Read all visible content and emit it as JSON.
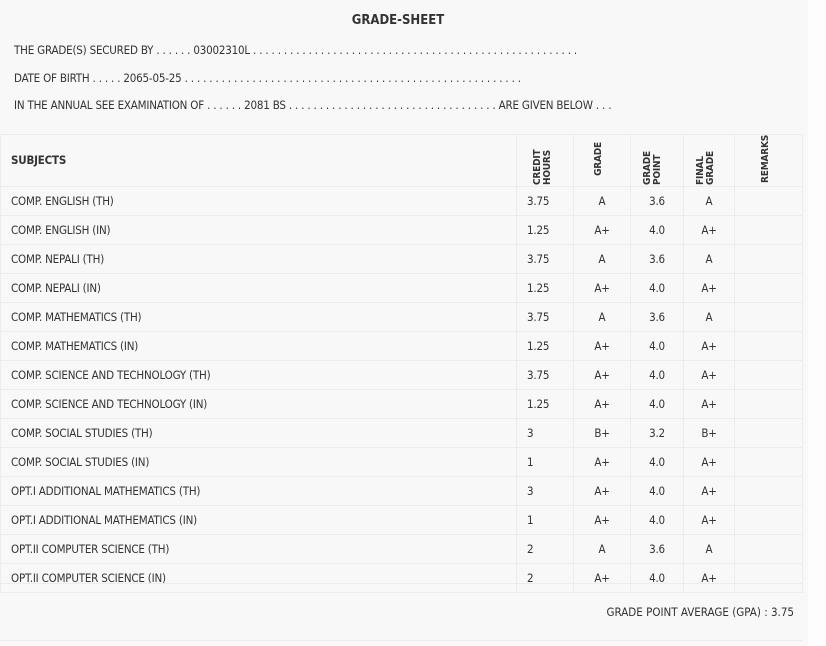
{
  "title": "GRADE-SHEET",
  "info": {
    "secured_by": "THE GRADE(S) SECURED BY . . . . . . 03002310L . . . . . . . . . . . . . . . . . . . . . . . . . . . . . . . . . . . . . . . . . . . . . . . . . . . . .",
    "dob": "DATE OF BIRTH . . . . . 2065-05-25 . . . . . . . . . . . . . . . . . . . . . . . . . . . . . . . . . . . . . . . . . . . . . . . . . . . . . . .",
    "exam": "IN THE ANNUAL SEE EXAMINATION OF . . . . . . 2081 BS . . . . . . . . . . . . . . . . . . . . . . . . . . . . . . . . . . ARE GIVEN BELOW . . ."
  },
  "headers": {
    "subjects": "SUBJECTS",
    "credit": "CREDIT HOURS",
    "grade": "GRADE",
    "point": "GRADE POINT",
    "final": "FINAL GRADE",
    "remarks": "REMARKS"
  },
  "rows": [
    {
      "subject": "COMP. ENGLISH (TH)",
      "credit": "3.75",
      "grade": "A",
      "point": "3.6",
      "final": "A"
    },
    {
      "subject": "COMP. ENGLISH (IN)",
      "credit": "1.25",
      "grade": "A+",
      "point": "4.0",
      "final": "A+"
    },
    {
      "subject": "COMP. NEPALI (TH)",
      "credit": "3.75",
      "grade": "A",
      "point": "3.6",
      "final": "A"
    },
    {
      "subject": "COMP. NEPALI (IN)",
      "credit": "1.25",
      "grade": "A+",
      "point": "4.0",
      "final": "A+"
    },
    {
      "subject": "COMP. MATHEMATICS (TH)",
      "credit": "3.75",
      "grade": "A",
      "point": "3.6",
      "final": "A"
    },
    {
      "subject": "COMP. MATHEMATICS (IN)",
      "credit": "1.25",
      "grade": "A+",
      "point": "4.0",
      "final": "A+"
    },
    {
      "subject": "COMP. SCIENCE AND TECHNOLOGY (TH)",
      "credit": "3.75",
      "grade": "A+",
      "point": "4.0",
      "final": "A+"
    },
    {
      "subject": "COMP. SCIENCE AND TECHNOLOGY (IN)",
      "credit": "1.25",
      "grade": "A+",
      "point": "4.0",
      "final": "A+"
    },
    {
      "subject": "COMP. SOCIAL STUDIES (TH)",
      "credit": "3",
      "grade": "B+",
      "point": "3.2",
      "final": "B+"
    },
    {
      "subject": "COMP. SOCIAL STUDIES (IN)",
      "credit": "1",
      "grade": "A+",
      "point": "4.0",
      "final": "A+"
    },
    {
      "subject": "OPT.I ADDITIONAL MATHEMATICS (TH)",
      "credit": "3",
      "grade": "A+",
      "point": "4.0",
      "final": "A+"
    },
    {
      "subject": "OPT.I ADDITIONAL MATHEMATICS (IN)",
      "credit": "1",
      "grade": "A+",
      "point": "4.0",
      "final": "A+"
    },
    {
      "subject": "OPT.II COMPUTER SCIENCE (TH)",
      "credit": "2",
      "grade": "A",
      "point": "3.6",
      "final": "A"
    },
    {
      "subject": "OPT.II COMPUTER SCIENCE (IN)",
      "credit": "2",
      "grade": "A+",
      "point": "4.0",
      "final": "A+"
    }
  ],
  "gpa": "GRADE POINT AVERAGE (GPA) : 3.75"
}
